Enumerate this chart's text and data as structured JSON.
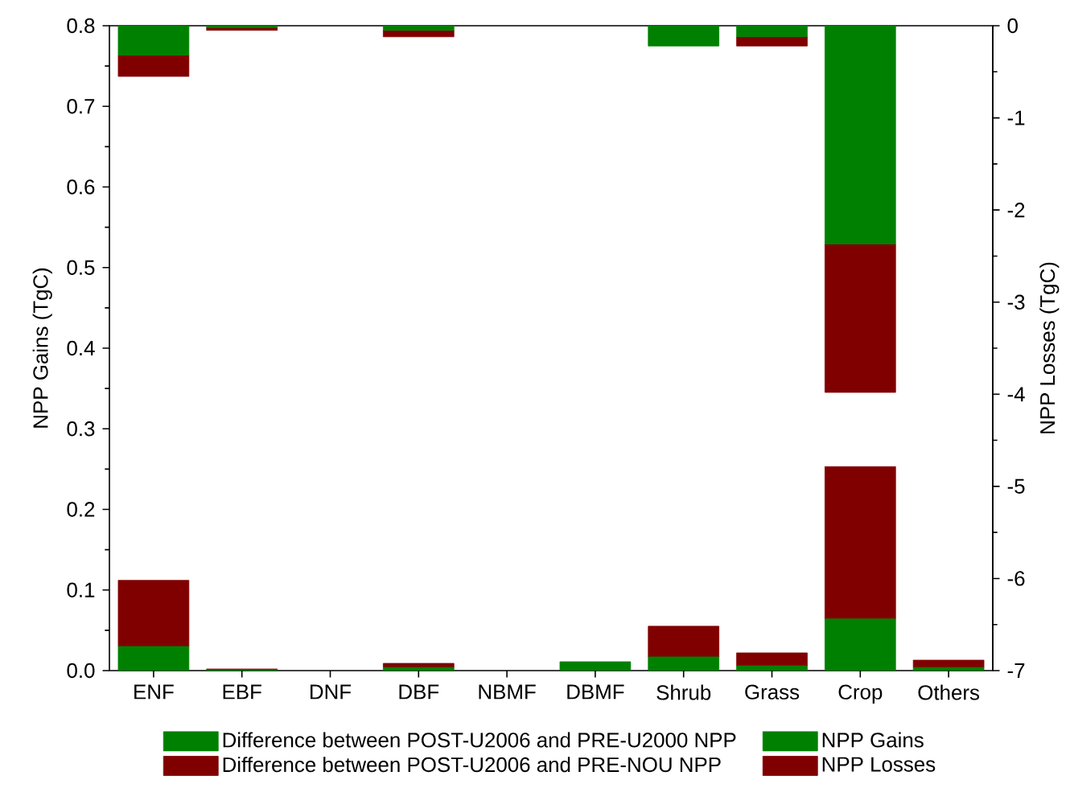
{
  "chart_data": {
    "type": "bar",
    "stacked": true,
    "categories": [
      "ENF",
      "EBF",
      "DNF",
      "DBF",
      "NBMF",
      "DBMF",
      "Shrub",
      "Grass",
      "Crop",
      "Others"
    ],
    "ylabel": "NPP Gains (TgC)",
    "y2label": "NPP Losses (TgC)",
    "ylim": [
      0,
      0.8
    ],
    "yticks": [
      {
        "value": 0,
        "label": "0.0"
      },
      0.1,
      0.2,
      0.3,
      0.4,
      0.5,
      0.6,
      0.7,
      0.8
    ],
    "y2lim": [
      -7,
      0
    ],
    "y2ticks": [
      -7,
      -6,
      -5,
      -4,
      -3,
      -2,
      -1,
      0
    ],
    "legend": "bottom",
    "series": [
      {
        "name": "Difference between POST-U2006 and PRE-U2000 NPP",
        "color": "#008000",
        "axis": "y2",
        "values": [
          -0.32,
          -0.02,
          0,
          -0.05,
          0,
          0,
          -0.22,
          -0.12,
          -2.37,
          0
        ]
      },
      {
        "name": "NPP Gains",
        "color": "#008000",
        "axis": "y",
        "values": [
          0.03,
          0.001,
          0,
          0.004,
          0,
          0.011,
          0.017,
          0.006,
          0.064,
          0.004
        ]
      },
      {
        "name": "Difference between POST-U2006 and PRE-NOU NPP",
        "color": "#800000",
        "axis": "y",
        "values": [
          0.082,
          0.001,
          0,
          0.005,
          0,
          0,
          0.038,
          0.016,
          0.189,
          0.009
        ]
      },
      {
        "name": "NPP Losses",
        "color": "#800000",
        "axis": "y2",
        "values": [
          -0.23,
          -0.03,
          0,
          -0.07,
          0,
          0,
          0,
          -0.1,
          -1.61,
          0
        ]
      }
    ]
  }
}
